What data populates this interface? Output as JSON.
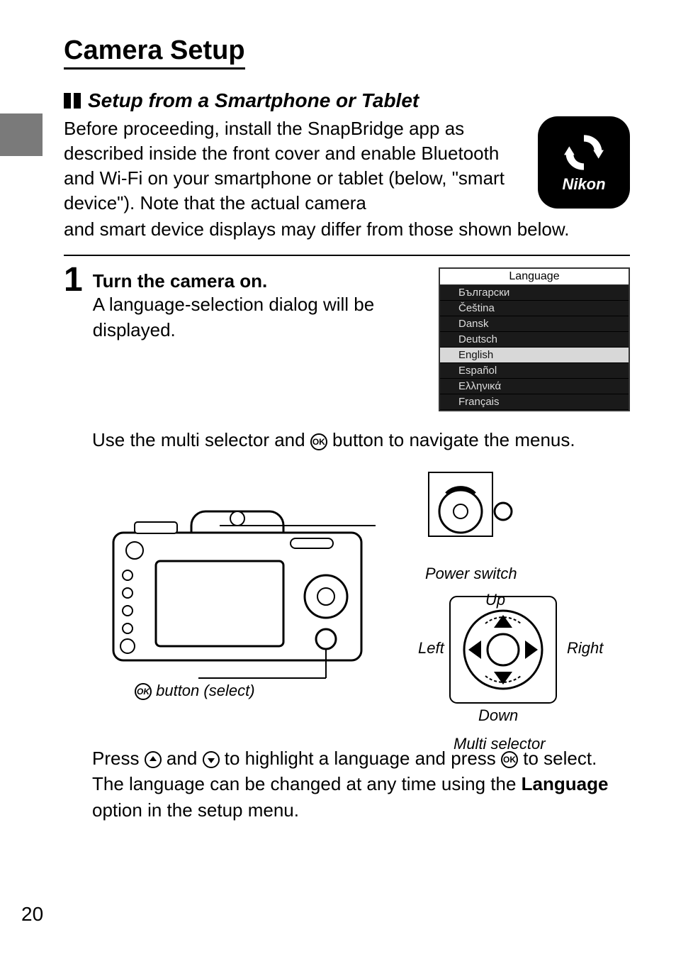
{
  "page_number": "20",
  "title": "Camera Setup",
  "subheading": "Setup from a Smartphone or Tablet",
  "intro_part1": "Before proceeding, install the SnapBridge app as described inside the front cover and enable Bluetooth and Wi-Fi on your smartphone or tablet (below, \"smart device\").  Note that the actual camera",
  "intro_part2": "and smart device displays may differ from those shown below.",
  "logo_text": "Nikon",
  "step": {
    "number": "1",
    "title": "Turn the camera on.",
    "text": "A language-selection dialog will be displayed."
  },
  "lang_menu": {
    "header": "Language",
    "items": [
      "Български",
      "Čeština",
      "Dansk",
      "Deutsch",
      "English",
      "Español",
      "Ελληνικά",
      "Français"
    ],
    "selected_index": 4
  },
  "nav_text_pre": "Use the multi selector and ",
  "nav_text_post": " button to navigate the menus.",
  "diagram_labels": {
    "power_switch": "Power switch",
    "up": "Up",
    "down": "Down",
    "left": "Left",
    "right": "Right",
    "multi_selector": "Multi selector",
    "button_select": " button (select)"
  },
  "final_para": {
    "p1_pre": "Press ",
    "p1_mid": " and ",
    "p1_post": " to highlight a language and press ",
    "p1_end": " to select. The language can be changed at any time using the ",
    "bold": "Language",
    "tail": " option in the setup menu."
  },
  "colors": {
    "tab": "#7a7a7a",
    "menu_bg": "#1a1a1a",
    "menu_sel": "#d8d8d8",
    "logo_bg": "#000000"
  }
}
